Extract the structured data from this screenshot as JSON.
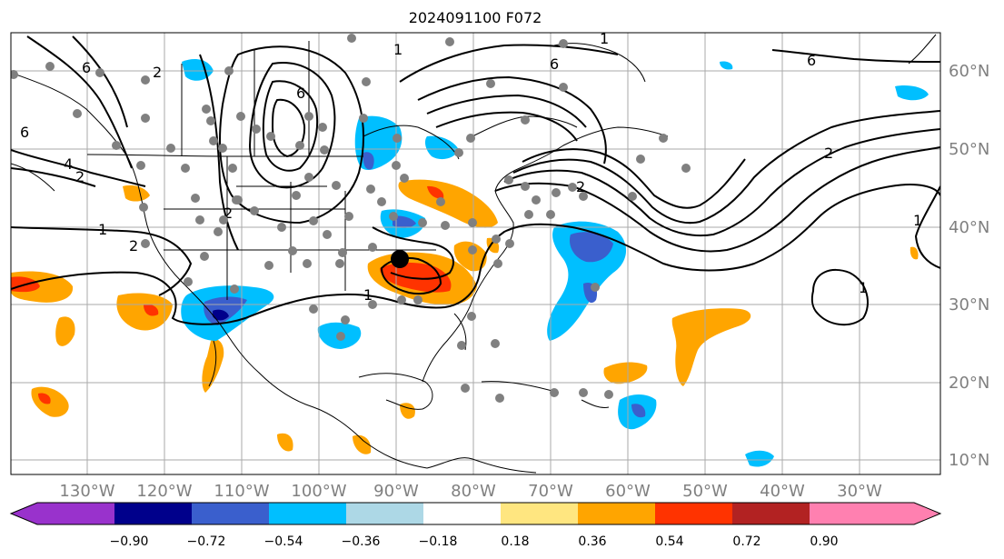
{
  "title": "2024091100 F072",
  "lon_labels": [
    "130°W",
    "120°W",
    "110°W",
    "100°W",
    "90°W",
    "80°W",
    "70°W",
    "60°W",
    "50°W",
    "40°W",
    "30°W"
  ],
  "lat_labels": [
    "60°N",
    "50°N",
    "40°N",
    "30°N",
    "20°N",
    "10°N"
  ],
  "contour_labels": [
    "6",
    "4",
    "2",
    "1",
    "2",
    "6",
    "6",
    "2",
    "1",
    "1",
    "2",
    "2",
    "1",
    "6",
    "1",
    "6",
    "2",
    "1"
  ],
  "colorbar": {
    "ticks": [
      "−0.90",
      "−0.72",
      "−0.54",
      "−0.36",
      "−0.18",
      "0.18",
      "0.36",
      "0.54",
      "0.72",
      "0.90"
    ],
    "colors": [
      "#9932cc",
      "#00008b",
      "#3a5fcd",
      "#00bfff",
      "#add8e6",
      "#ffffff",
      "#ffe680",
      "#ffa500",
      "#ff3300",
      "#b22222",
      "#ff80b0"
    ],
    "extend_low_color": "#9932cc",
    "extend_high_color": "#ff80b0"
  },
  "colors": {
    "grid": "#aaaaaa",
    "coast": "#000000",
    "station": "#808080",
    "marker": "#000000",
    "axis_label": "#808080"
  }
}
